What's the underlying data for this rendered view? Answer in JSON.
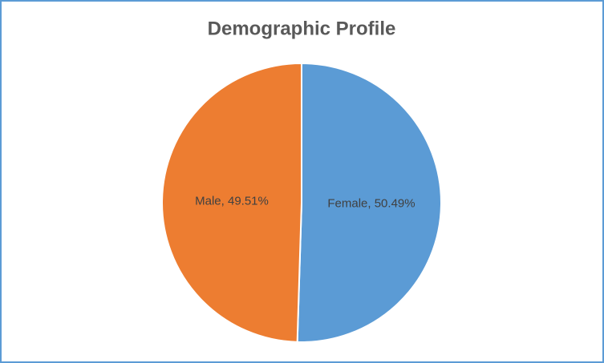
{
  "chart_data": {
    "type": "pie",
    "title": "Demographic Profile",
    "values": [
      50.49,
      49.51
    ],
    "value_labels": [
      "Female, 50.49%",
      "Male, 49.51%"
    ],
    "colors": [
      "#5b9bd5",
      "#ed7d31"
    ]
  }
}
